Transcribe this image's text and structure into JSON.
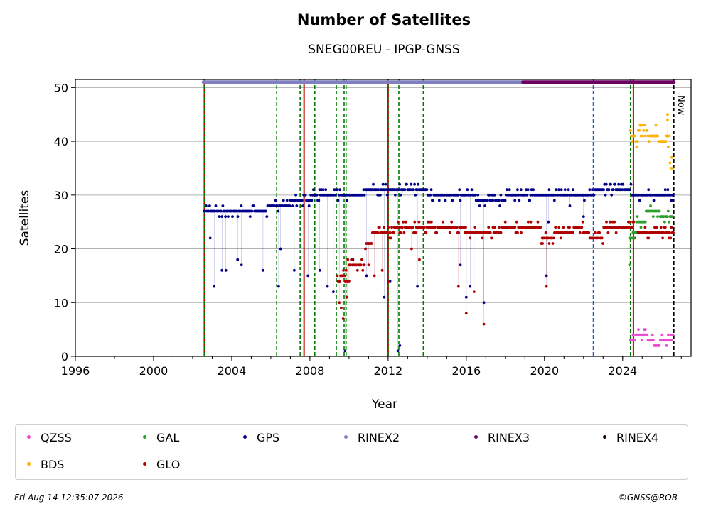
{
  "chart_data": {
    "type": "scatter",
    "title": "Number of Satellites",
    "subtitle": "SNEG00REU - IPGP-GNSS",
    "xlabel": "Year",
    "ylabel": "Satellites",
    "xlim": [
      1996,
      2027.5
    ],
    "ylim": [
      0,
      51.5
    ],
    "x_ticks": [
      "1996",
      "2000",
      "2004",
      "2008",
      "2012",
      "2016",
      "2020",
      "2024"
    ],
    "y_ticks": [
      "0",
      "10",
      "20",
      "30",
      "40",
      "50"
    ],
    "grid": "horizontal",
    "now_label": "Now",
    "now_year": 2026.62,
    "colors": {
      "QZSS": "#f04ad0",
      "GAL": "#2ca02c",
      "GPS": "#00008b",
      "RINEX2": "#8080c0",
      "RINEX3": "#6b0060",
      "RINEX4": "#1a0010",
      "BDS": "#ffb000",
      "GLO": "#b00000"
    },
    "legend": [
      "QZSS",
      "GAL",
      "GPS",
      "RINEX2",
      "RINEX3",
      "RINEX4",
      "BDS",
      "GLO"
    ],
    "event_lines": [
      {
        "x": 2002.6,
        "style": "red-green"
      },
      {
        "x": 2006.3,
        "style": "green"
      },
      {
        "x": 2007.5,
        "style": "green"
      },
      {
        "x": 2007.7,
        "style": "red"
      },
      {
        "x": 2008.25,
        "style": "green"
      },
      {
        "x": 2009.35,
        "style": "green"
      },
      {
        "x": 2009.75,
        "style": "green"
      },
      {
        "x": 2009.85,
        "style": "green"
      },
      {
        "x": 2012.0,
        "style": "red-green"
      },
      {
        "x": 2012.55,
        "style": "green"
      },
      {
        "x": 2013.8,
        "style": "green"
      },
      {
        "x": 2022.5,
        "style": "blue"
      },
      {
        "x": 2024.4,
        "style": "green"
      },
      {
        "x": 2024.55,
        "style": "red"
      }
    ],
    "rinex_bar": [
      {
        "name": "RINEX2",
        "x_start": 2002.55,
        "x_end": 2018.9,
        "y": 51
      },
      {
        "name": "RINEX3",
        "x_start": 2018.9,
        "x_end": 2026.62,
        "y": 51
      }
    ],
    "series": [
      {
        "name": "GPS",
        "x_start": 2002.6,
        "x_end": 2026.6,
        "levels": [
          [
            2002.6,
            27
          ],
          [
            2005.8,
            28
          ],
          [
            2007.0,
            29
          ],
          [
            2008.1,
            30
          ],
          [
            2010.2,
            30
          ],
          [
            2010.8,
            31
          ],
          [
            2012.0,
            31
          ],
          [
            2014.0,
            30
          ],
          [
            2016.0,
            30
          ],
          [
            2016.5,
            29
          ],
          [
            2018.0,
            30
          ],
          [
            2020.5,
            30
          ],
          [
            2022.6,
            31
          ],
          [
            2024.5,
            30
          ],
          [
            2026.6,
            31
          ]
        ],
        "outliers": [
          [
            2002.9,
            22
          ],
          [
            2003.1,
            13
          ],
          [
            2003.5,
            16
          ],
          [
            2003.7,
            16
          ],
          [
            2004.3,
            18
          ],
          [
            2004.5,
            17
          ],
          [
            2005.6,
            16
          ],
          [
            2006.4,
            13
          ],
          [
            2006.5,
            20
          ],
          [
            2007.2,
            16
          ],
          [
            2007.9,
            15
          ],
          [
            2008.5,
            16
          ],
          [
            2008.9,
            13
          ],
          [
            2009.2,
            12
          ],
          [
            2009.5,
            14
          ],
          [
            2009.8,
            1
          ],
          [
            2010.2,
            18
          ],
          [
            2010.9,
            15
          ],
          [
            2011.8,
            11
          ],
          [
            2012.1,
            14
          ],
          [
            2012.5,
            1
          ],
          [
            2012.6,
            2
          ],
          [
            2013.5,
            13
          ],
          [
            2015.7,
            17
          ],
          [
            2016.0,
            11
          ],
          [
            2016.2,
            13
          ],
          [
            2016.9,
            10
          ],
          [
            2020.1,
            15
          ],
          [
            2020.2,
            25
          ],
          [
            2021.3,
            28
          ],
          [
            2022.0,
            26
          ]
        ]
      },
      {
        "name": "GLO",
        "x_start": 2009.4,
        "x_end": 2026.6,
        "levels": [
          [
            2009.4,
            15
          ],
          [
            2009.9,
            17
          ],
          [
            2010.8,
            21
          ],
          [
            2011.2,
            23
          ],
          [
            2012.0,
            23
          ],
          [
            2012.3,
            24
          ],
          [
            2016.0,
            23
          ],
          [
            2017.8,
            24
          ],
          [
            2019.8,
            22
          ],
          [
            2020.5,
            23
          ],
          [
            2021.5,
            24
          ],
          [
            2022.0,
            23
          ],
          [
            2022.3,
            22
          ],
          [
            2023.0,
            24
          ],
          [
            2024.4,
            24
          ],
          [
            2024.6,
            23
          ],
          [
            2026.6,
            24
          ]
        ],
        "outliers": [
          [
            2009.5,
            10
          ],
          [
            2009.6,
            9
          ],
          [
            2009.7,
            7
          ],
          [
            2009.9,
            11
          ],
          [
            2010.0,
            14
          ],
          [
            2011.0,
            17
          ],
          [
            2011.3,
            15
          ],
          [
            2011.7,
            16
          ],
          [
            2012.0,
            14
          ],
          [
            2013.2,
            20
          ],
          [
            2013.6,
            18
          ],
          [
            2015.6,
            13
          ],
          [
            2016.0,
            8
          ],
          [
            2016.4,
            12
          ],
          [
            2016.9,
            6
          ],
          [
            2020.1,
            13
          ],
          [
            2019.9,
            21
          ]
        ]
      },
      {
        "name": "GAL",
        "x_start": 2024.35,
        "x_end": 2026.6,
        "levels": [
          [
            2024.35,
            22
          ],
          [
            2024.6,
            23
          ],
          [
            2024.7,
            25
          ],
          [
            2025.2,
            27
          ],
          [
            2025.9,
            26
          ],
          [
            2026.3,
            26
          ],
          [
            2026.6,
            28
          ]
        ],
        "outliers": [
          [
            2024.35,
            17
          ]
        ]
      },
      {
        "name": "BDS",
        "x_start": 2024.4,
        "x_end": 2026.6,
        "levels": [
          [
            2024.4,
            41
          ],
          [
            2024.6,
            40
          ],
          [
            2024.8,
            42
          ],
          [
            2025.3,
            41
          ],
          [
            2025.8,
            40
          ],
          [
            2026.2,
            40
          ],
          [
            2026.4,
            36
          ],
          [
            2026.6,
            34
          ]
        ],
        "outliers": [
          [
            2024.9,
            43
          ],
          [
            2025.7,
            43
          ],
          [
            2026.3,
            45
          ],
          [
            2026.3,
            44
          ]
        ]
      },
      {
        "name": "QZSS",
        "x_start": 2024.4,
        "x_end": 2026.6,
        "levels": [
          [
            2024.4,
            3
          ],
          [
            2024.5,
            4
          ],
          [
            2025.0,
            4
          ],
          [
            2025.3,
            3
          ],
          [
            2025.6,
            2
          ],
          [
            2025.9,
            3
          ],
          [
            2026.3,
            3
          ],
          [
            2026.6,
            2
          ]
        ],
        "outliers": [
          [
            2025.1,
            5
          ]
        ]
      }
    ]
  },
  "footer": {
    "timestamp": "Fri Aug 14 12:35:07 2026",
    "credit": "©GNSS@ROB"
  }
}
